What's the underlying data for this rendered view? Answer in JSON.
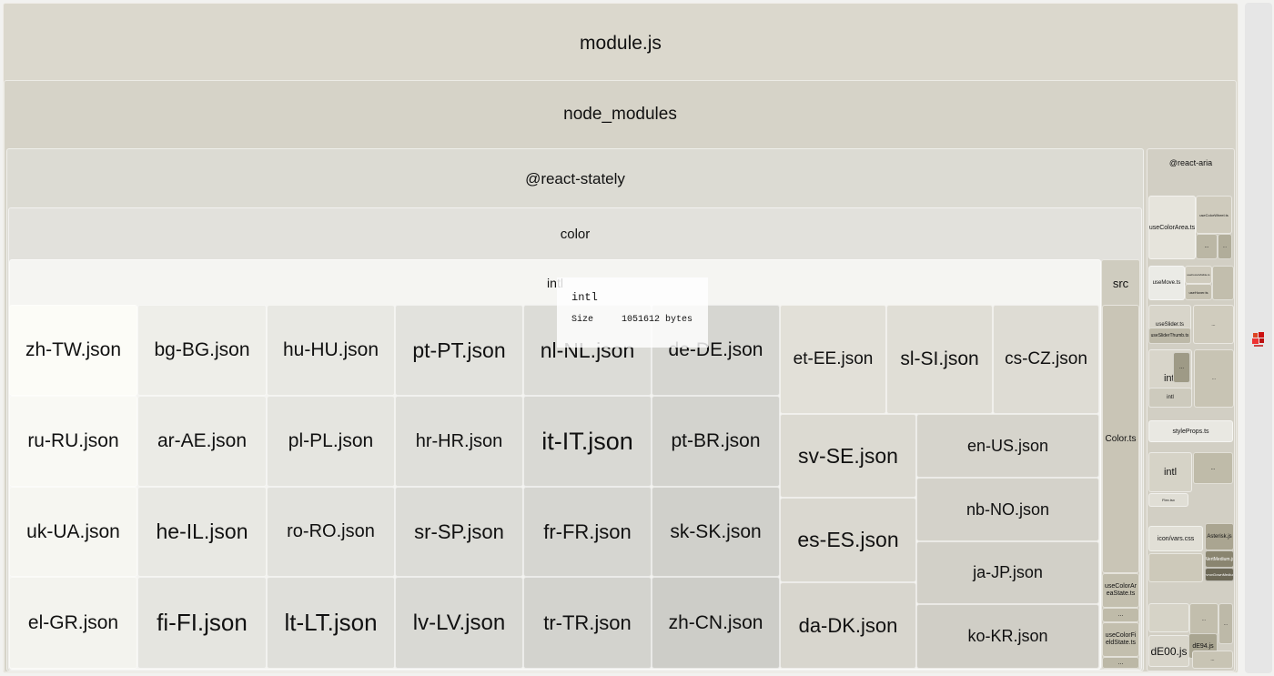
{
  "root": {
    "label": "module.js"
  },
  "node_modules": {
    "label": "node_modules"
  },
  "react_stately": {
    "label": "@react-stately"
  },
  "color": {
    "label": "color"
  },
  "intl": {
    "label": "intl",
    "files": [
      "zh-TW.json",
      "bg-BG.json",
      "hu-HU.json",
      "pt-PT.json",
      "nl-NL.json",
      "de-DE.json",
      "ru-RU.json",
      "ar-AE.json",
      "pl-PL.json",
      "hr-HR.json",
      "it-IT.json",
      "pt-BR.json",
      "uk-UA.json",
      "he-IL.json",
      "ro-RO.json",
      "sr-SP.json",
      "fr-FR.json",
      "sk-SK.json",
      "el-GR.json",
      "fi-FI.json",
      "lt-LT.json",
      "lv-LV.json",
      "tr-TR.json",
      "zh-CN.json"
    ],
    "right_files": [
      "et-EE.json",
      "sl-SI.json",
      "cs-CZ.json",
      "sv-SE.json",
      "es-ES.json",
      "da-DK.json",
      "en-US.json",
      "nb-NO.json",
      "ja-JP.json",
      "ko-KR.json"
    ]
  },
  "src": {
    "label": "src",
    "color_ts": "Color.ts",
    "small": [
      "useColorAreaState.ts",
      "...",
      "useColorFieldState.ts",
      "..."
    ]
  },
  "react_aria": {
    "label": "@react-aria",
    "items": [
      "useColorArea.ts",
      "useColorWheel.ts",
      "useMove.ts",
      "useFocusVisible.ts",
      "useHover.ts",
      "useSlider.ts",
      "useSliderThumb.ts",
      "intl",
      "intl",
      "styleProps.ts",
      "intl",
      "Flex.tsx",
      "icon/vars.css",
      "Asterisk.js",
      "AlertMedium.js",
      "ChevronDownMedium.js",
      "dE00.js",
      "dE94.js",
      "..."
    ]
  },
  "tooltip": {
    "title": "intl",
    "size_label": "Size",
    "size_value": "1051612 bytes"
  },
  "scrollbar": {
    "icon": "treemap-logo-icon"
  }
}
